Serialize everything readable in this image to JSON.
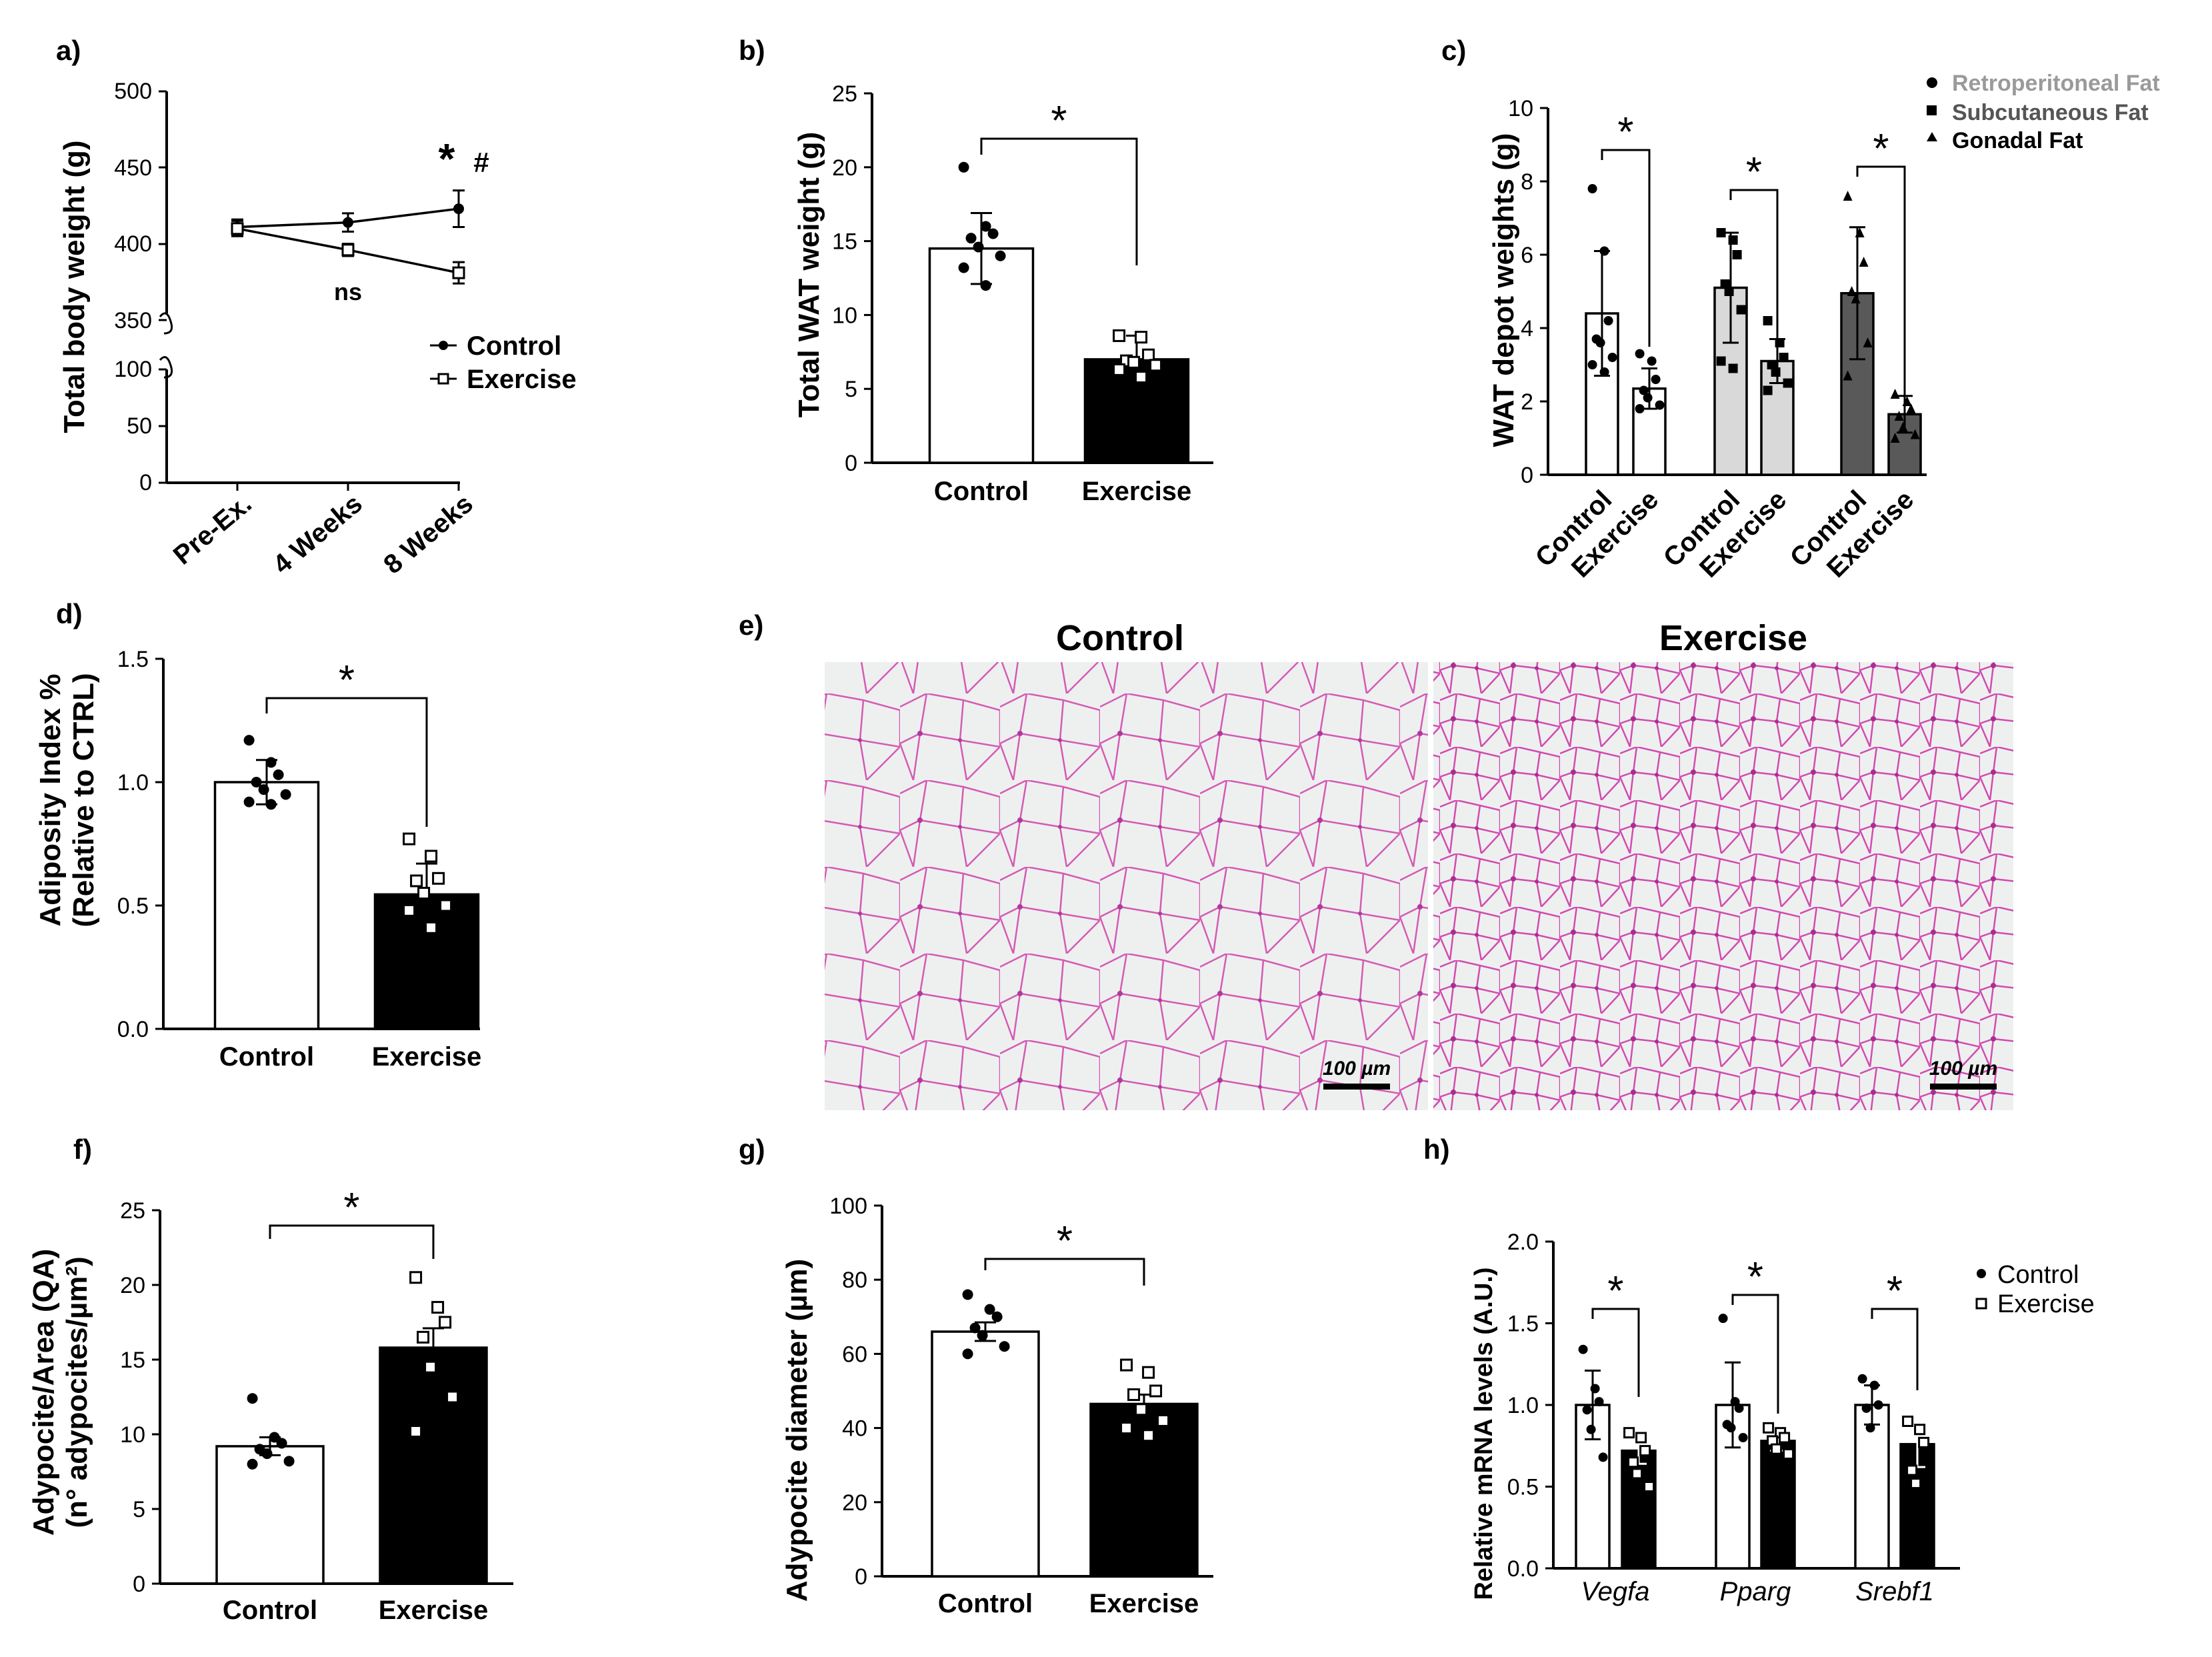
{
  "colors": {
    "control": "#ffffff",
    "exercise": "#000000",
    "retro": "#ffffff",
    "subc": "#d9d9d9",
    "gonadal": "#595959",
    "histo_bg": "#eef0f0",
    "histo_stain": "#c0359a"
  },
  "chart_data": [
    {
      "id": "a",
      "panel_label": "a)",
      "type": "line",
      "ylabel": "Total body weight (g)",
      "categories": [
        "Pre-Ex.",
        "4 Weeks",
        "8 Weeks"
      ],
      "yticks_upper": [
        "350",
        "400",
        "450",
        "500"
      ],
      "yticks_lower": [
        "0",
        "50",
        "100"
      ],
      "ylim_upper": [
        350,
        500
      ],
      "ylim_lower": [
        0,
        100
      ],
      "series": [
        {
          "name": "Control",
          "values": [
            411,
            414,
            423
          ],
          "errors": [
            5,
            6,
            12
          ]
        },
        {
          "name": "Exercise",
          "values": [
            410,
            396,
            381
          ],
          "errors": [
            5,
            4,
            7
          ]
        }
      ],
      "annotations": {
        "star": "*",
        "hash": "#",
        "ns": "ns"
      }
    },
    {
      "id": "b",
      "panel_label": "b)",
      "type": "bar",
      "ylabel": "Total WAT weight (g)",
      "categories": [
        "Control",
        "Exercise"
      ],
      "yticks": [
        "0",
        "5",
        "10",
        "15",
        "20",
        "25"
      ],
      "ylim": [
        0,
        25
      ],
      "values": [
        14.5,
        7.0
      ],
      "errors": [
        2.4,
        1.6
      ],
      "points": [
        [
          20.0,
          16.0,
          15.5,
          15.2,
          14.6,
          14.0,
          13.2,
          12.0
        ],
        [
          8.6,
          8.5,
          7.3,
          6.9,
          6.8,
          6.6,
          6.3,
          5.8
        ]
      ],
      "significance": "*"
    },
    {
      "id": "c",
      "panel_label": "c)",
      "type": "bar",
      "ylabel": "WAT depot weights (g)",
      "groups": [
        "Retroperitoneal Fat",
        "Subcutaneous Fat",
        "Gonadal Fat"
      ],
      "categories": [
        "Control",
        "Exercise",
        "Control",
        "Exercise",
        "Control",
        "Exercise"
      ],
      "yticks": [
        "0",
        "2",
        "4",
        "6",
        "8",
        "10"
      ],
      "ylim": [
        0,
        10
      ],
      "values": [
        4.4,
        2.35,
        5.1,
        3.1,
        4.95,
        1.65
      ],
      "errors": [
        1.7,
        0.55,
        1.5,
        0.6,
        1.8,
        0.5
      ],
      "points": [
        [
          7.8,
          6.1,
          4.2,
          3.7,
          3.6,
          3.2,
          3.0,
          2.8
        ],
        [
          3.3,
          3.1,
          2.6,
          2.3,
          2.1,
          1.9,
          1.8
        ],
        [
          6.6,
          6.4,
          6.0,
          5.2,
          5.0,
          4.5,
          3.1,
          2.9
        ],
        [
          4.2,
          3.6,
          3.2,
          3.0,
          2.8,
          2.5,
          2.3
        ],
        [
          7.6,
          6.6,
          5.8,
          5.0,
          4.8,
          3.6,
          2.7
        ],
        [
          2.2,
          2.0,
          1.8,
          1.6,
          1.3,
          1.1,
          1.0
        ]
      ],
      "significance": "*"
    },
    {
      "id": "d",
      "panel_label": "d)",
      "type": "bar",
      "ylabel": "Adiposity Index %",
      "ylabel2": "(Relative to CTRL)",
      "categories": [
        "Control",
        "Exercise"
      ],
      "yticks": [
        "0.0",
        "0.5",
        "1.0",
        "1.5"
      ],
      "ylim": [
        0,
        1.5
      ],
      "values": [
        1.0,
        0.545
      ],
      "errors": [
        0.09,
        0.125
      ],
      "points": [
        [
          1.17,
          1.08,
          1.03,
          1.0,
          0.97,
          0.95,
          0.92,
          0.91
        ],
        [
          0.77,
          0.7,
          0.61,
          0.6,
          0.55,
          0.5,
          0.48,
          0.41
        ]
      ],
      "significance": "*"
    },
    {
      "id": "f",
      "panel_label": "f)",
      "type": "bar",
      "ylabel": "Adypocite/Area (QA)",
      "ylabel2": "(n° adypocites/µm²)",
      "categories": [
        "Control",
        "Exercise"
      ],
      "yticks": [
        "0",
        "5",
        "10",
        "15",
        "20",
        "25"
      ],
      "ylim": [
        0,
        25
      ],
      "values": [
        9.2,
        15.8
      ],
      "errors": [
        0.6,
        1.3
      ],
      "points": [
        [
          12.4,
          9.8,
          9.4,
          9.0,
          8.7,
          8.2,
          8.0
        ],
        [
          20.5,
          18.5,
          17.5,
          16.5,
          14.5,
          12.5,
          10.2
        ]
      ],
      "significance": "*"
    },
    {
      "id": "g",
      "panel_label": "g)",
      "type": "bar",
      "ylabel": "Adypocite diameter (µm)",
      "categories": [
        "Control",
        "Exercise"
      ],
      "yticks": [
        "0",
        "20",
        "40",
        "60",
        "80",
        "100"
      ],
      "ylim": [
        0,
        100
      ],
      "values": [
        66.0,
        46.5
      ],
      "errors": [
        2.5,
        2.5
      ],
      "points": [
        [
          76,
          72,
          70,
          67,
          65,
          62,
          60
        ],
        [
          57,
          55,
          50,
          49,
          45,
          42,
          40,
          38
        ]
      ],
      "significance": "*"
    },
    {
      "id": "h",
      "panel_label": "h)",
      "type": "bar",
      "ylabel": "Relative mRNA levels (A.U.)",
      "genes": [
        "Vegfa",
        "Pparg",
        "Srebf1"
      ],
      "legend": [
        "Control",
        "Exercise"
      ],
      "yticks": [
        "0.0",
        "0.5",
        "1.0",
        "1.5",
        "2.0"
      ],
      "ylim": [
        0,
        2.0
      ],
      "values": [
        1.0,
        0.72,
        1.0,
        0.78,
        1.0,
        0.76
      ],
      "errors": [
        0.21,
        0.08,
        0.26,
        0.06,
        0.12,
        0.14
      ],
      "points": [
        [
          1.34,
          1.1,
          1.02,
          0.97,
          0.85,
          0.68
        ],
        [
          0.83,
          0.8,
          0.72,
          0.65,
          0.58,
          0.5
        ],
        [
          1.53,
          1.02,
          0.98,
          0.88,
          0.86,
          0.8
        ],
        [
          0.86,
          0.83,
          0.8,
          0.78,
          0.73,
          0.7
        ],
        [
          1.16,
          1.12,
          1.0,
          0.98,
          0.86
        ],
        [
          0.9,
          0.85,
          0.77,
          0.6,
          0.52
        ]
      ],
      "significance": "*"
    }
  ],
  "histology": {
    "panel_label": "e)",
    "left_title": "Control",
    "right_title": "Exercise",
    "scale_label": "100 µm"
  }
}
